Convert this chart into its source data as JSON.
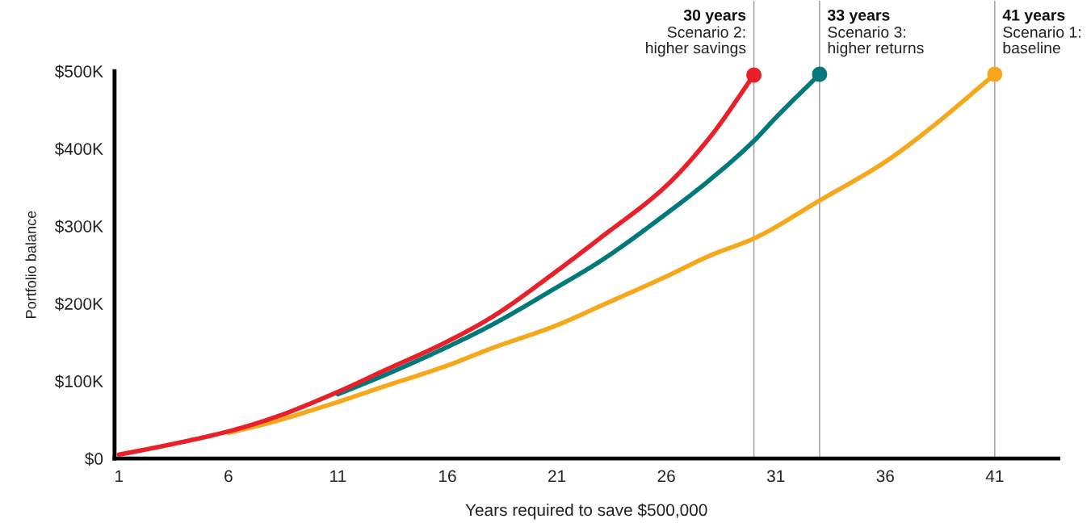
{
  "chart_data": {
    "type": "line",
    "xlabel": "Years required to save $500,000",
    "ylabel": "Portfolio balance",
    "xlim": [
      0.8,
      43.9
    ],
    "xticks": [
      1,
      6,
      11,
      16,
      21,
      26,
      31,
      36,
      41
    ],
    "ylim": [
      0,
      500
    ],
    "yticks": [
      {
        "value": 0,
        "label": "$0"
      },
      {
        "value": 100,
        "label": "$100K"
      },
      {
        "value": 200,
        "label": "$200K"
      },
      {
        "value": 300,
        "label": "$300K"
      },
      {
        "value": 400,
        "label": "$400K"
      },
      {
        "value": 500,
        "label": "$500K"
      }
    ],
    "grid": false,
    "legend": false,
    "marker": "none",
    "line_style": "solid",
    "series": [
      {
        "color": "#e8202a",
        "x": [
          1,
          3,
          6,
          8,
          11,
          13,
          16,
          18,
          21,
          23,
          26,
          28,
          30
        ],
        "values": [
          5,
          16,
          35,
          52,
          86,
          112,
          151,
          182,
          242,
          285,
          352,
          415,
          495
        ]
      },
      {
        "color": "#00797a",
        "x": [
          11,
          13,
          16,
          18,
          21,
          23,
          26,
          28,
          30,
          31,
          33
        ],
        "values": [
          83,
          106,
          144,
          172,
          221,
          255,
          316,
          360,
          410,
          440,
          496
        ]
      },
      {
        "color": "#f5a81c",
        "x": [
          6,
          8,
          11,
          13,
          16,
          18,
          21,
          23,
          26,
          28,
          30,
          33,
          36,
          38,
          41
        ],
        "values": [
          33,
          47,
          73,
          92,
          120,
          142,
          172,
          197,
          235,
          262,
          284,
          333,
          383,
          425,
          496
        ]
      },
      {
        "type": "scatter",
        "marker": "circle",
        "x": [
          30,
          33,
          41
        ],
        "values": [
          495,
          496,
          496
        ],
        "colors": [
          "#e8202a",
          "#00797a",
          "#f5a81c"
        ]
      }
    ],
    "ref_lines": [
      {
        "axis": "x",
        "value": 30,
        "label": "30 years\nScenario 2:\nhigher savings",
        "color": "#999999"
      },
      {
        "axis": "x",
        "value": 33,
        "label": "33 years\nScenario 3:\nhigher returns",
        "color": "#999999"
      },
      {
        "axis": "x",
        "value": 41,
        "label": "41 years\nScenario 1:\nbaseline",
        "color": "#999999"
      }
    ]
  }
}
